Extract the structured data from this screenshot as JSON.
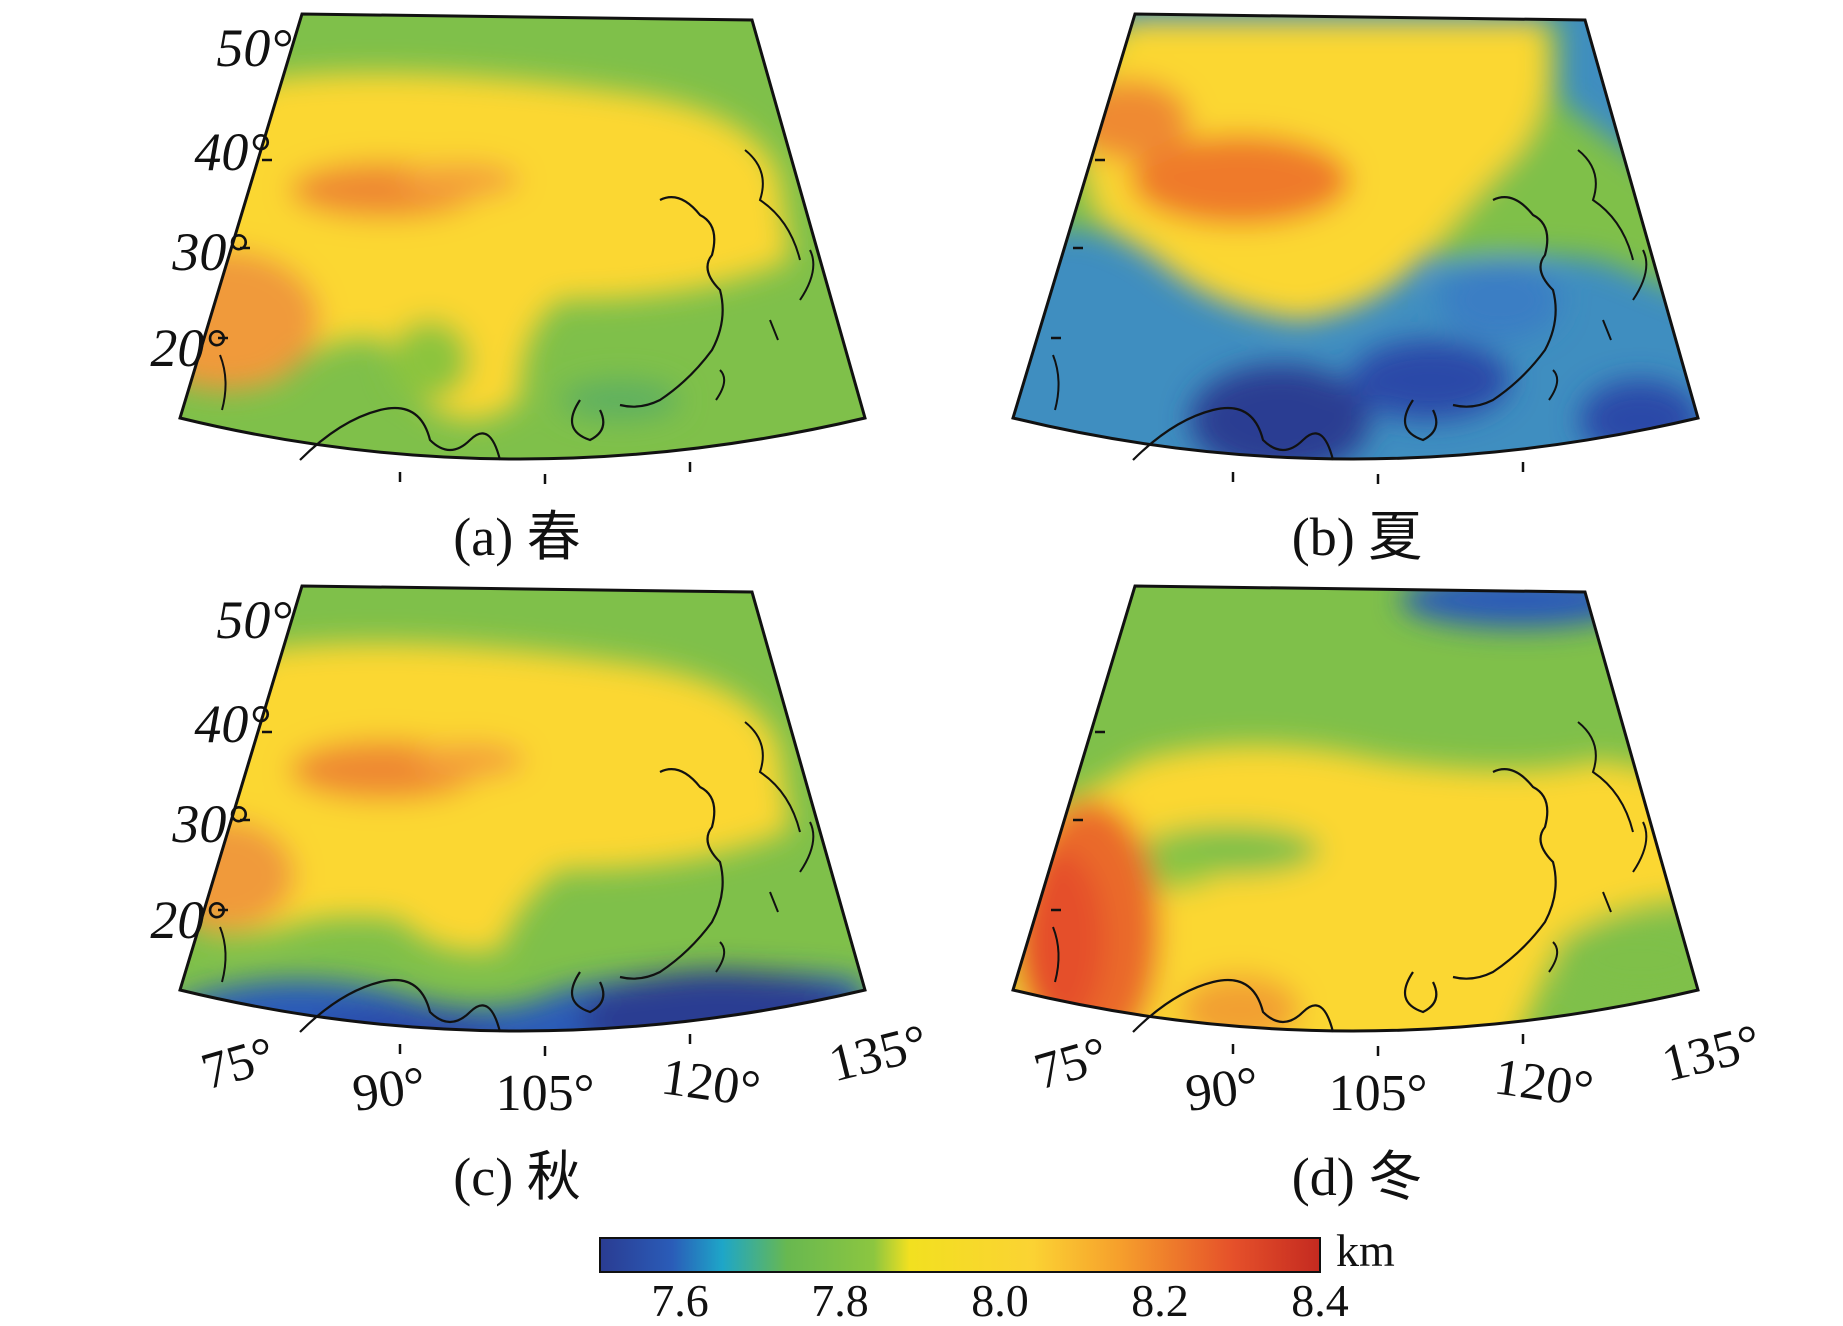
{
  "panels": [
    {
      "id": "a",
      "caption": "(a) 春",
      "variant": "spring"
    },
    {
      "id": "b",
      "caption": "(b) 夏",
      "variant": "summer"
    },
    {
      "id": "c",
      "caption": "(c) 秋",
      "variant": "autumn"
    },
    {
      "id": "d",
      "caption": "(d) 冬",
      "variant": "winter"
    }
  ],
  "lat_labels": [
    "50°",
    "40°",
    "30°",
    "20°"
  ],
  "lon_labels": [
    "75°",
    "90°",
    "105°",
    "120°",
    "135°"
  ],
  "colorbar": {
    "unit": "km",
    "ticks": [
      "7.6",
      "7.8",
      "8.0",
      "8.2",
      "8.4"
    ],
    "range": [
      7.5,
      8.4
    ],
    "colors": [
      "#2a3c92",
      "#2a5cb8",
      "#1ea6c8",
      "#68b850",
      "#8cc640",
      "#f2e020",
      "#fbd333",
      "#f6a02c",
      "#e5502a",
      "#c42a20"
    ]
  }
}
